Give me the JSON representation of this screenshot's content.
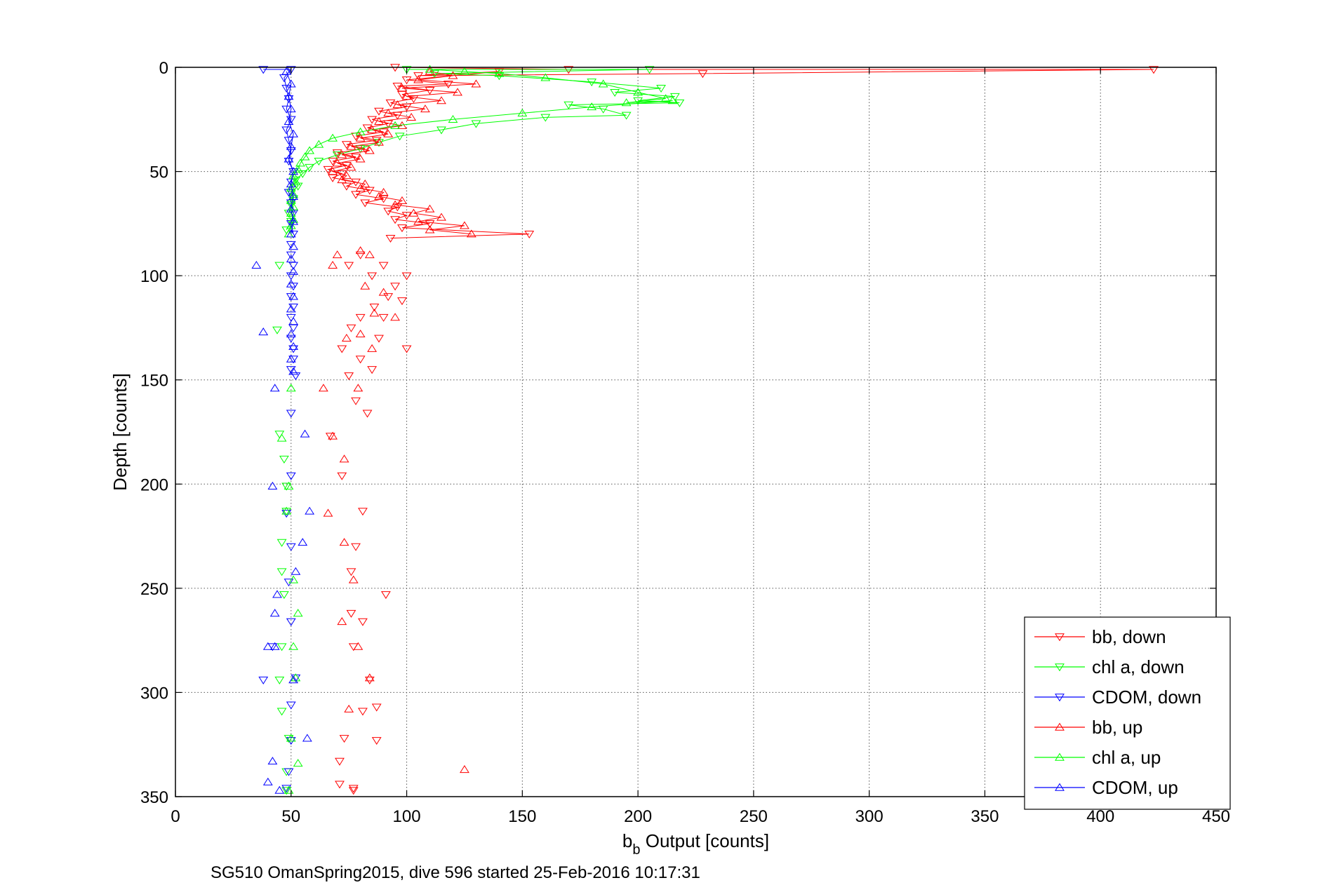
{
  "chart_data": {
    "type": "scatter",
    "xlabel_main": "b",
    "xlabel_sub": "b",
    "xlabel_rest": " Output [counts]",
    "ylabel": "Depth [counts]",
    "xlim": [
      0,
      450
    ],
    "ylim": [
      0,
      350
    ],
    "y_reversed": true,
    "x_ticks": [
      "0",
      "50",
      "100",
      "150",
      "200",
      "250",
      "300",
      "350",
      "400",
      "450"
    ],
    "y_ticks": [
      "0",
      "50",
      "100",
      "150",
      "200",
      "250",
      "300",
      "350"
    ],
    "grid": true,
    "legend_position": "bottom-right",
    "footer": "SG510 OmanSpring2015, dive 596 started 25-Feb-2016 10:17:31",
    "series": [
      {
        "name": "bb, down",
        "color": "#ff0000",
        "marker": "triangle-down",
        "line": true,
        "points": [
          [
            95,
            0
          ],
          [
            170,
            1
          ],
          [
            423,
            1
          ],
          [
            228,
            3
          ],
          [
            105,
            4
          ],
          [
            140,
            2
          ],
          [
            100,
            6
          ],
          [
            118,
            8
          ],
          [
            96,
            9
          ],
          [
            110,
            11
          ],
          [
            98,
            13
          ],
          [
            103,
            15
          ],
          [
            93,
            17
          ],
          [
            100,
            19
          ],
          [
            88,
            21
          ],
          [
            96,
            23
          ],
          [
            85,
            25
          ],
          [
            92,
            27
          ],
          [
            83,
            29
          ],
          [
            90,
            31
          ],
          [
            78,
            33
          ],
          [
            87,
            35
          ],
          [
            74,
            37
          ],
          [
            82,
            39
          ],
          [
            70,
            41
          ],
          [
            78,
            43
          ],
          [
            68,
            45
          ],
          [
            74,
            47
          ],
          [
            66,
            49
          ],
          [
            72,
            51
          ],
          [
            68,
            53
          ],
          [
            78,
            55
          ],
          [
            74,
            57
          ],
          [
            84,
            59
          ],
          [
            78,
            61
          ],
          [
            90,
            63
          ],
          [
            82,
            65
          ],
          [
            96,
            67
          ],
          [
            92,
            69
          ],
          [
            100,
            71
          ],
          [
            95,
            73
          ],
          [
            110,
            75
          ],
          [
            98,
            77
          ],
          [
            153,
            80
          ],
          [
            93,
            82
          ],
          [
            80,
            90
          ],
          [
            75,
            95
          ],
          [
            90,
            95
          ],
          [
            85,
            100
          ],
          [
            100,
            100
          ],
          [
            95,
            105
          ],
          [
            92,
            110
          ],
          [
            86,
            115
          ],
          [
            98,
            112
          ],
          [
            80,
            120
          ],
          [
            90,
            120
          ],
          [
            76,
            125
          ],
          [
            88,
            130
          ],
          [
            72,
            135
          ],
          [
            100,
            135
          ],
          [
            80,
            140
          ],
          [
            85,
            145
          ],
          [
            75,
            148
          ],
          [
            78,
            160
          ],
          [
            83,
            166
          ],
          [
            67,
            177
          ],
          [
            72,
            196
          ],
          [
            81,
            213
          ],
          [
            78,
            230
          ],
          [
            76,
            242
          ],
          [
            91,
            253
          ],
          [
            76,
            262
          ],
          [
            81,
            266
          ],
          [
            77,
            278
          ],
          [
            84,
            294
          ],
          [
            81,
            309
          ],
          [
            87,
            307
          ],
          [
            73,
            322
          ],
          [
            87,
            323
          ],
          [
            71,
            333
          ],
          [
            77,
            347
          ],
          [
            77,
            346
          ],
          [
            71,
            344
          ]
        ]
      },
      {
        "name": "chl a, down",
        "color": "#00ff00",
        "marker": "triangle-down",
        "line": true,
        "points": [
          [
            100,
            1
          ],
          [
            205,
            1
          ],
          [
            112,
            3
          ],
          [
            140,
            4
          ],
          [
            180,
            7
          ],
          [
            210,
            10
          ],
          [
            190,
            12
          ],
          [
            216,
            14
          ],
          [
            200,
            16
          ],
          [
            218,
            17
          ],
          [
            170,
            18
          ],
          [
            185,
            20
          ],
          [
            195,
            23
          ],
          [
            160,
            24
          ],
          [
            130,
            27
          ],
          [
            115,
            30
          ],
          [
            97,
            33
          ],
          [
            88,
            36
          ],
          [
            80,
            39
          ],
          [
            70,
            42
          ],
          [
            62,
            45
          ],
          [
            58,
            48
          ],
          [
            55,
            51
          ],
          [
            52,
            54
          ],
          [
            53,
            57
          ],
          [
            50,
            60
          ],
          [
            51,
            63
          ],
          [
            50,
            66
          ],
          [
            49,
            70
          ],
          [
            50,
            74
          ],
          [
            48,
            78
          ],
          [
            45,
            95
          ],
          [
            44,
            126
          ],
          [
            45,
            176
          ],
          [
            47,
            188
          ],
          [
            48,
            201
          ],
          [
            48,
            213
          ],
          [
            46,
            228
          ],
          [
            46,
            242
          ],
          [
            47,
            253
          ],
          [
            46,
            278
          ],
          [
            45,
            294
          ],
          [
            46,
            309
          ],
          [
            49,
            322
          ],
          [
            48,
            338
          ],
          [
            48,
            347
          ]
        ]
      },
      {
        "name": "CDOM, down",
        "color": "#0000ff",
        "marker": "triangle-down",
        "line": true,
        "points": [
          [
            38,
            1
          ],
          [
            50,
            1
          ],
          [
            47,
            5
          ],
          [
            48,
            10
          ],
          [
            49,
            15
          ],
          [
            48,
            20
          ],
          [
            50,
            25
          ],
          [
            48,
            30
          ],
          [
            49,
            35
          ],
          [
            50,
            40
          ],
          [
            49,
            45
          ],
          [
            51,
            50
          ],
          [
            50,
            55
          ],
          [
            49,
            60
          ],
          [
            50,
            65
          ],
          [
            51,
            70
          ],
          [
            50,
            75
          ],
          [
            51,
            80
          ],
          [
            50,
            85
          ],
          [
            50,
            90
          ],
          [
            51,
            95
          ],
          [
            50,
            100
          ],
          [
            51,
            105
          ],
          [
            50,
            110
          ],
          [
            51,
            115
          ],
          [
            50,
            120
          ],
          [
            51,
            125
          ],
          [
            50,
            130
          ],
          [
            51,
            135
          ],
          [
            51,
            140
          ],
          [
            50,
            145
          ],
          [
            52,
            148
          ],
          [
            50,
            166
          ],
          [
            50,
            196
          ],
          [
            48,
            214
          ],
          [
            50,
            230
          ],
          [
            49,
            247
          ],
          [
            50,
            266
          ],
          [
            42,
            278
          ],
          [
            38,
            294
          ],
          [
            52,
            293
          ],
          [
            50,
            306
          ],
          [
            50,
            323
          ],
          [
            49,
            338
          ],
          [
            48,
            346
          ]
        ]
      },
      {
        "name": "bb, up",
        "color": "#ff0000",
        "marker": "triangle-up",
        "line": true,
        "points": [
          [
            110,
            2
          ],
          [
            120,
            4
          ],
          [
            105,
            6
          ],
          [
            130,
            8
          ],
          [
            98,
            10
          ],
          [
            122,
            12
          ],
          [
            100,
            14
          ],
          [
            115,
            16
          ],
          [
            96,
            18
          ],
          [
            108,
            20
          ],
          [
            92,
            22
          ],
          [
            102,
            24
          ],
          [
            88,
            26
          ],
          [
            98,
            28
          ],
          [
            85,
            30
          ],
          [
            92,
            32
          ],
          [
            80,
            34
          ],
          [
            88,
            36
          ],
          [
            76,
            38
          ],
          [
            84,
            40
          ],
          [
            72,
            42
          ],
          [
            80,
            44
          ],
          [
            70,
            46
          ],
          [
            76,
            48
          ],
          [
            68,
            50
          ],
          [
            74,
            52
          ],
          [
            72,
            54
          ],
          [
            82,
            56
          ],
          [
            80,
            58
          ],
          [
            90,
            60
          ],
          [
            88,
            62
          ],
          [
            98,
            64
          ],
          [
            95,
            66
          ],
          [
            110,
            68
          ],
          [
            103,
            70
          ],
          [
            115,
            72
          ],
          [
            105,
            74
          ],
          [
            125,
            76
          ],
          [
            110,
            78
          ],
          [
            128,
            80
          ],
          [
            70,
            90
          ],
          [
            68,
            95
          ],
          [
            80,
            88
          ],
          [
            84,
            90
          ],
          [
            82,
            105
          ],
          [
            90,
            108
          ],
          [
            86,
            118
          ],
          [
            95,
            120
          ],
          [
            80,
            128
          ],
          [
            74,
            130
          ],
          [
            85,
            135
          ],
          [
            64,
            154
          ],
          [
            79,
            154
          ],
          [
            68,
            177
          ],
          [
            73,
            188
          ],
          [
            66,
            214
          ],
          [
            73,
            228
          ],
          [
            77,
            246
          ],
          [
            72,
            266
          ],
          [
            79,
            278
          ],
          [
            84,
            293
          ],
          [
            75,
            308
          ],
          [
            125,
            337
          ]
        ]
      },
      {
        "name": "chl a, up",
        "color": "#00ff00",
        "marker": "triangle-up",
        "line": true,
        "points": [
          [
            110,
            1
          ],
          [
            125,
            2
          ],
          [
            140,
            3
          ],
          [
            160,
            5
          ],
          [
            185,
            8
          ],
          [
            200,
            12
          ],
          [
            212,
            15
          ],
          [
            195,
            17
          ],
          [
            215,
            16
          ],
          [
            180,
            19
          ],
          [
            150,
            22
          ],
          [
            120,
            25
          ],
          [
            95,
            28
          ],
          [
            80,
            31
          ],
          [
            68,
            34
          ],
          [
            62,
            37
          ],
          [
            58,
            40
          ],
          [
            56,
            43
          ],
          [
            54,
            46
          ],
          [
            53,
            49
          ],
          [
            51,
            52
          ],
          [
            52,
            55
          ],
          [
            50,
            58
          ],
          [
            51,
            61
          ],
          [
            50,
            64
          ],
          [
            51,
            67
          ],
          [
            50,
            70
          ],
          [
            51,
            73
          ],
          [
            50,
            76
          ],
          [
            49,
            80
          ],
          [
            50,
            154
          ],
          [
            46,
            178
          ],
          [
            49,
            201
          ],
          [
            48,
            213
          ],
          [
            51,
            246
          ],
          [
            53,
            262
          ],
          [
            51,
            278
          ],
          [
            52,
            293
          ],
          [
            50,
            322
          ],
          [
            53,
            334
          ],
          [
            49,
            347
          ]
        ]
      },
      {
        "name": "CDOM, up",
        "color": "#0000ff",
        "marker": "triangle-up",
        "line": true,
        "points": [
          [
            48,
            2
          ],
          [
            50,
            8
          ],
          [
            49,
            14
          ],
          [
            50,
            20
          ],
          [
            49,
            26
          ],
          [
            51,
            32
          ],
          [
            50,
            38
          ],
          [
            49,
            44
          ],
          [
            51,
            50
          ],
          [
            50,
            56
          ],
          [
            51,
            62
          ],
          [
            50,
            68
          ],
          [
            51,
            74
          ],
          [
            50,
            80
          ],
          [
            51,
            86
          ],
          [
            50,
            92
          ],
          [
            51,
            98
          ],
          [
            50,
            104
          ],
          [
            51,
            110
          ],
          [
            50,
            116
          ],
          [
            51,
            122
          ],
          [
            50,
            128
          ],
          [
            51,
            134
          ],
          [
            50,
            140
          ],
          [
            51,
            146
          ],
          [
            35,
            95
          ],
          [
            38,
            127
          ],
          [
            43,
            154
          ],
          [
            56,
            176
          ],
          [
            42,
            201
          ],
          [
            58,
            213
          ],
          [
            55,
            228
          ],
          [
            52,
            242
          ],
          [
            44,
            253
          ],
          [
            43,
            262
          ],
          [
            40,
            278
          ],
          [
            43,
            278
          ],
          [
            51,
            294
          ],
          [
            57,
            322
          ],
          [
            42,
            333
          ],
          [
            40,
            343
          ],
          [
            45,
            347
          ]
        ]
      }
    ]
  }
}
